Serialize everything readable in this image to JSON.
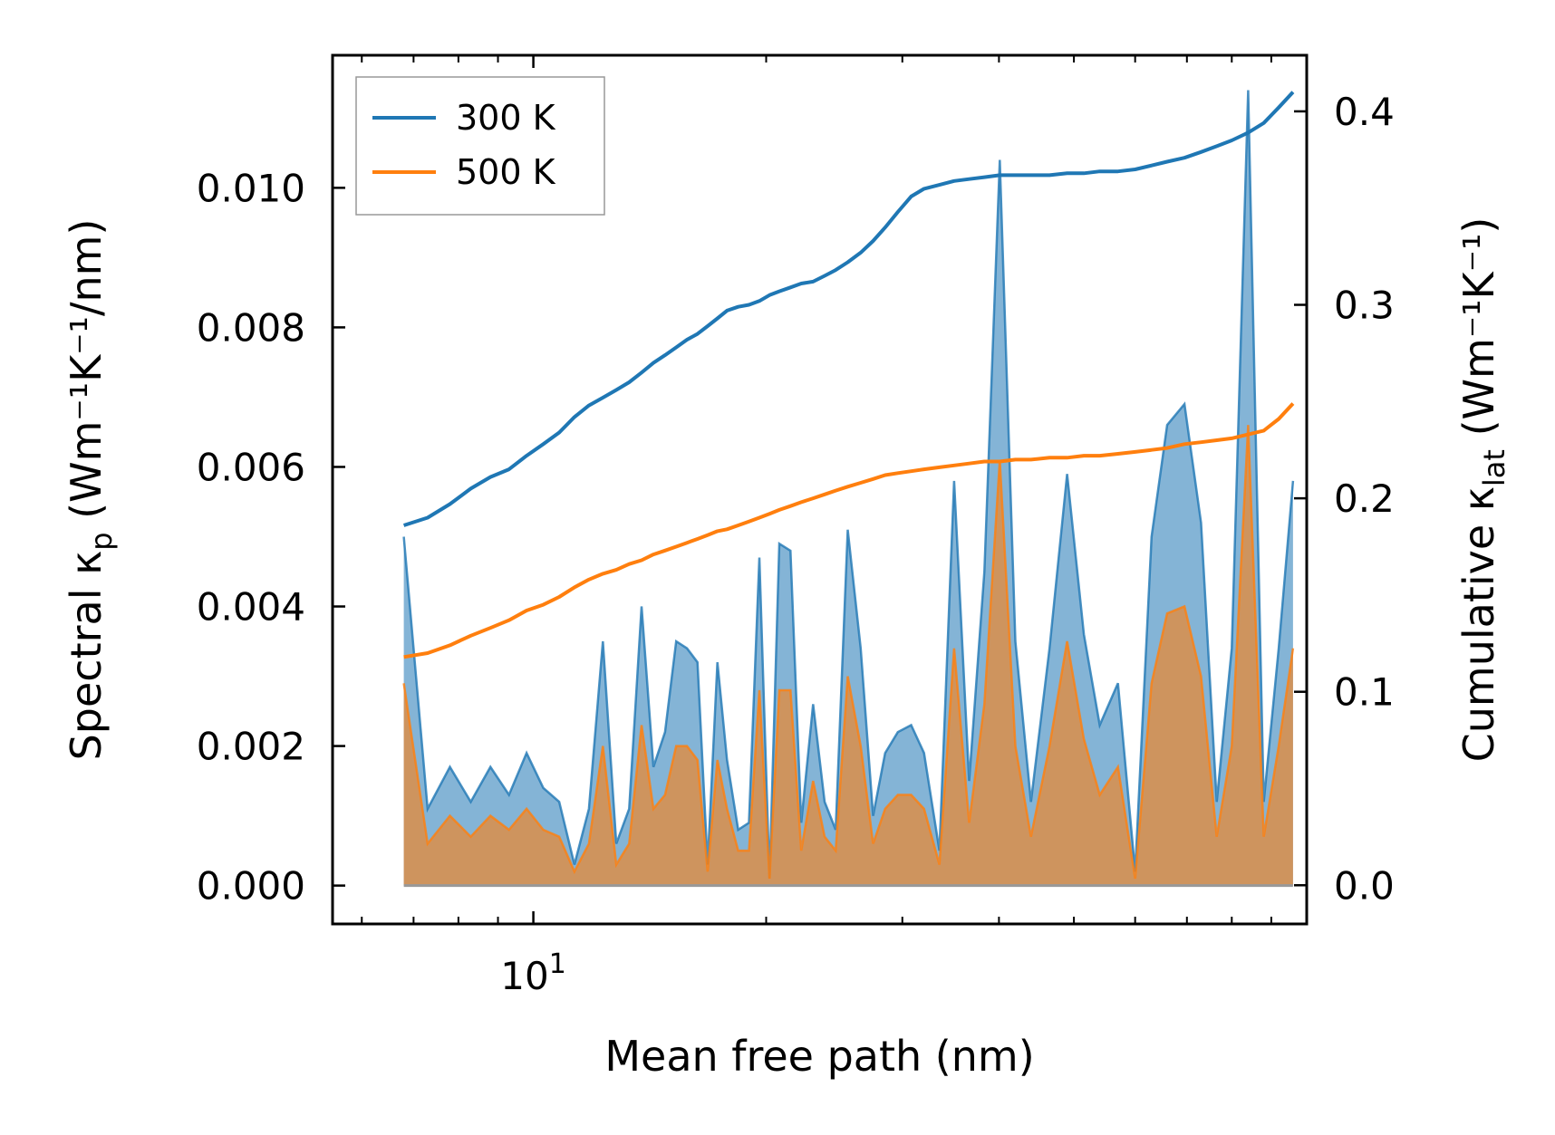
{
  "chart_data": {
    "type": "line",
    "xscale": "log",
    "xlabel": "Mean free path (nm)",
    "xlim": [
      5.5,
      100
    ],
    "x_ticks": [
      {
        "base": "10",
        "exp": "1",
        "value": 10
      }
    ],
    "y_left": {
      "label_main": "Spectral κ",
      "label_sub": "p",
      "label_units": "(Wm⁻¹K⁻¹/nm)",
      "ylim": [
        -0.00055,
        0.0119
      ],
      "ticks": [
        0.0,
        0.002,
        0.004,
        0.006,
        0.008,
        0.01
      ],
      "tick_labels": [
        "0.000",
        "0.002",
        "0.004",
        "0.006",
        "0.008",
        "0.010"
      ]
    },
    "y_right": {
      "label_main": "Cumulative κ",
      "label_sub": "lat",
      "label_units": "(Wm⁻¹K⁻¹)",
      "ylim": [
        -0.02,
        0.429
      ],
      "ticks": [
        0.0,
        0.1,
        0.2,
        0.3,
        0.4
      ],
      "tick_labels": [
        "0.0",
        "0.1",
        "0.2",
        "0.3",
        "0.4"
      ]
    },
    "legend": {
      "position": "top-left",
      "entries": [
        "300 K",
        "500 K"
      ]
    },
    "series": [
      {
        "name": "300 K",
        "color": "#1f77b4",
        "cumulative": {
          "x": [
            6.8,
            7.3,
            7.8,
            8.3,
            8.8,
            9.3,
            9.8,
            10.3,
            10.8,
            11.3,
            11.8,
            12.3,
            12.8,
            13.3,
            13.8,
            14.3,
            14.8,
            15.3,
            15.8,
            16.3,
            16.8,
            17.3,
            17.8,
            18.4,
            19.0,
            19.6,
            20.2,
            20.8,
            21.5,
            22.2,
            23.0,
            23.8,
            24.6,
            25.5,
            26.5,
            27.5,
            28.5,
            29.6,
            30.8,
            32.0,
            33.5,
            35.0,
            36.6,
            38.3,
            40.1,
            42.0,
            44.0,
            46.5,
            49.0,
            51.5,
            54.0,
            57.0,
            60.0,
            63.0,
            66.0,
            69.5,
            73.0,
            76.5,
            80.0,
            84.0,
            88.0,
            92.0,
            96.0
          ],
          "y": [
            0.186,
            0.19,
            0.197,
            0.205,
            0.211,
            0.215,
            0.222,
            0.228,
            0.234,
            0.242,
            0.248,
            0.252,
            0.256,
            0.26,
            0.265,
            0.27,
            0.274,
            0.278,
            0.282,
            0.285,
            0.289,
            0.293,
            0.297,
            0.299,
            0.3,
            0.302,
            0.305,
            0.307,
            0.309,
            0.311,
            0.312,
            0.315,
            0.318,
            0.322,
            0.327,
            0.333,
            0.34,
            0.348,
            0.356,
            0.36,
            0.362,
            0.364,
            0.365,
            0.366,
            0.367,
            0.367,
            0.367,
            0.367,
            0.368,
            0.368,
            0.369,
            0.369,
            0.37,
            0.372,
            0.374,
            0.376,
            0.379,
            0.382,
            0.385,
            0.389,
            0.394,
            0.402,
            0.41
          ]
        }
      },
      {
        "name": "500 K",
        "color": "#ff7f0e",
        "cumulative": {
          "x": [
            6.8,
            7.3,
            7.8,
            8.3,
            8.8,
            9.3,
            9.8,
            10.3,
            10.8,
            11.3,
            11.8,
            12.3,
            12.8,
            13.3,
            13.8,
            14.3,
            14.8,
            15.3,
            15.8,
            16.3,
            16.8,
            17.3,
            17.8,
            18.4,
            19.0,
            19.6,
            20.2,
            20.8,
            21.5,
            22.2,
            23.0,
            23.8,
            24.6,
            25.5,
            26.5,
            27.5,
            28.5,
            29.6,
            30.8,
            32.0,
            33.5,
            35.0,
            36.6,
            38.3,
            40.1,
            42.0,
            44.0,
            46.5,
            49.0,
            51.5,
            54.0,
            57.0,
            60.0,
            63.0,
            66.0,
            69.5,
            73.0,
            76.5,
            80.0,
            84.0,
            88.0,
            92.0,
            96.0
          ],
          "y": [
            0.118,
            0.12,
            0.124,
            0.129,
            0.133,
            0.137,
            0.142,
            0.145,
            0.149,
            0.154,
            0.158,
            0.161,
            0.163,
            0.166,
            0.168,
            0.171,
            0.173,
            0.175,
            0.177,
            0.179,
            0.181,
            0.183,
            0.184,
            0.186,
            0.188,
            0.19,
            0.192,
            0.194,
            0.196,
            0.198,
            0.2,
            0.202,
            0.204,
            0.206,
            0.208,
            0.21,
            0.212,
            0.213,
            0.214,
            0.215,
            0.216,
            0.217,
            0.218,
            0.219,
            0.219,
            0.22,
            0.22,
            0.221,
            0.221,
            0.222,
            0.222,
            0.223,
            0.224,
            0.225,
            0.226,
            0.228,
            0.229,
            0.23,
            0.231,
            0.233,
            0.235,
            0.241,
            0.249
          ]
        }
      }
    ],
    "spectral": {
      "x": [
        6.8,
        7.3,
        7.8,
        8.3,
        8.8,
        9.3,
        9.8,
        10.3,
        10.8,
        11.3,
        11.8,
        12.3,
        12.8,
        13.3,
        13.8,
        14.3,
        14.8,
        15.3,
        15.8,
        16.3,
        16.8,
        17.3,
        17.8,
        18.4,
        19.0,
        19.6,
        20.2,
        20.8,
        21.5,
        22.2,
        23.0,
        23.8,
        24.6,
        25.5,
        26.5,
        27.5,
        28.5,
        29.6,
        30.8,
        32.0,
        33.5,
        35.0,
        36.6,
        38.3,
        40.1,
        42.0,
        44.0,
        46.5,
        49.0,
        51.5,
        54.0,
        57.0,
        60.0,
        63.0,
        66.0,
        69.5,
        73.0,
        76.5,
        80.0,
        84.0,
        88.0,
        92.0,
        96.0
      ],
      "y300": [
        0.005,
        0.0011,
        0.0017,
        0.0012,
        0.0017,
        0.0013,
        0.0019,
        0.0014,
        0.0012,
        0.0003,
        0.0011,
        0.0035,
        0.0006,
        0.0011,
        0.004,
        0.0017,
        0.0022,
        0.0035,
        0.0034,
        0.0032,
        0.0003,
        0.0032,
        0.0018,
        0.0008,
        0.0009,
        0.0047,
        0.0001,
        0.0049,
        0.0048,
        0.0009,
        0.0026,
        0.0012,
        0.0008,
        0.0051,
        0.0034,
        0.001,
        0.0019,
        0.0022,
        0.0023,
        0.0019,
        0.0005,
        0.0058,
        0.0015,
        0.0045,
        0.0104,
        0.0035,
        0.0012,
        0.0034,
        0.0059,
        0.0036,
        0.0023,
        0.0029,
        0.0002,
        0.005,
        0.0066,
        0.0069,
        0.0052,
        0.0012,
        0.0034,
        0.0114,
        0.0012,
        0.0034,
        0.0058
      ],
      "y500": [
        0.0029,
        0.0006,
        0.001,
        0.0007,
        0.001,
        0.0008,
        0.0011,
        0.0008,
        0.0007,
        0.0002,
        0.0006,
        0.002,
        0.0003,
        0.0006,
        0.0023,
        0.0011,
        0.0013,
        0.002,
        0.002,
        0.0018,
        0.0002,
        0.0018,
        0.0011,
        0.0005,
        0.0005,
        0.0028,
        0.0001,
        0.0028,
        0.0028,
        0.0005,
        0.0015,
        0.0007,
        0.0005,
        0.003,
        0.002,
        0.0006,
        0.0011,
        0.0013,
        0.0013,
        0.0011,
        0.0003,
        0.0034,
        0.0009,
        0.0026,
        0.0061,
        0.002,
        0.0007,
        0.002,
        0.0035,
        0.0021,
        0.0013,
        0.0017,
        0.0001,
        0.0029,
        0.0039,
        0.004,
        0.003,
        0.0007,
        0.002,
        0.0066,
        0.0007,
        0.002,
        0.0034
      ]
    }
  }
}
